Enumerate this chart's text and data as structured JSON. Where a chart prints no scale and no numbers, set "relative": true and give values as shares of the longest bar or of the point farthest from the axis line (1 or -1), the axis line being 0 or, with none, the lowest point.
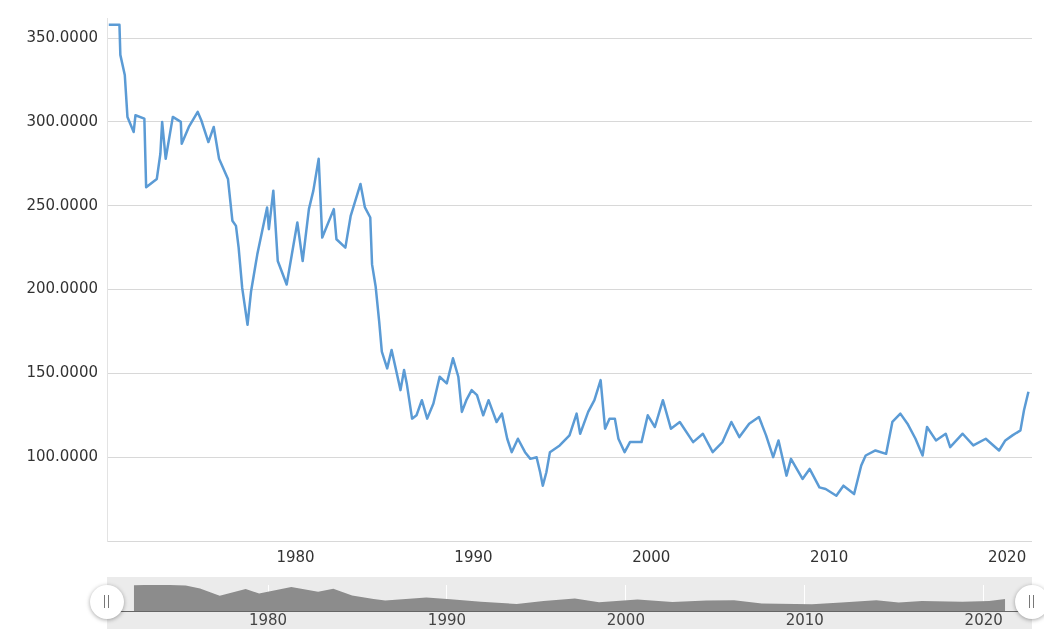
{
  "chart_data": [
    {
      "type": "line",
      "color": "#5b9bd5",
      "marker": "none",
      "grid": "y",
      "x": [
        1969.5,
        1970.1,
        1970.15,
        1970.4,
        1970.55,
        1970.9,
        1971.0,
        1971.5,
        1971.6,
        1972.2,
        1972.4,
        1972.5,
        1972.7,
        1973.1,
        1973.55,
        1973.6,
        1974.0,
        1974.5,
        1974.7,
        1975.1,
        1975.4,
        1975.7,
        1976.2,
        1976.45,
        1976.65,
        1976.8,
        1977.0,
        1977.3,
        1977.5,
        1977.85,
        1978.4,
        1978.5,
        1978.75,
        1979.0,
        1979.5,
        1980.1,
        1980.4,
        1980.75,
        1981.0,
        1981.3,
        1981.5,
        1982.15,
        1982.3,
        1982.8,
        1983.1,
        1983.65,
        1983.9,
        1984.2,
        1984.3,
        1984.5,
        1984.7,
        1984.85,
        1985.15,
        1985.4,
        1985.9,
        1986.1,
        1986.25,
        1986.55,
        1986.8,
        1987.1,
        1987.4,
        1987.75,
        1988.1,
        1988.5,
        1988.85,
        1989.15,
        1989.35,
        1989.6,
        1989.9,
        1990.2,
        1990.55,
        1990.85,
        1991.3,
        1991.6,
        1991.9,
        1992.15,
        1992.5,
        1992.9,
        1993.2,
        1993.55,
        1993.75,
        1993.9,
        1994.1,
        1994.3,
        1994.85,
        1995.4,
        1995.8,
        1996.0,
        1996.45,
        1996.8,
        1997.15,
        1997.4,
        1997.65,
        1997.95,
        1998.15,
        1998.5,
        1998.8,
        1999.45,
        1999.8,
        2000.2,
        2000.65,
        2001.1,
        2001.6,
        2002.35,
        2002.9,
        2003.45,
        2004.0,
        2004.5,
        2004.95,
        2005.5,
        2006.05,
        2006.45,
        2006.85,
        2007.15,
        2007.6,
        2007.85,
        2008.5,
        2008.9,
        2009.45,
        2009.8,
        2010.4,
        2010.8,
        2011.4,
        2011.8,
        2012.05,
        2012.6,
        2013.2,
        2013.55,
        2014.0,
        2014.4,
        2014.85,
        2015.25,
        2015.5,
        2016.0,
        2016.55,
        2016.8,
        2017.5,
        2018.1,
        2018.8,
        2019.55,
        2019.9,
        2020.3,
        2020.75,
        2020.95,
        2021.2
      ],
      "values": [
        358,
        358,
        340,
        328,
        303,
        294,
        304,
        302,
        261,
        266,
        281,
        300,
        278,
        303,
        300,
        287,
        297,
        306,
        301,
        288,
        297,
        278,
        266,
        241,
        238,
        225,
        201,
        179,
        199,
        221,
        249,
        236,
        259,
        217,
        203,
        240,
        217,
        248,
        259,
        278,
        231,
        248,
        230,
        225,
        244,
        263,
        249,
        243,
        215,
        202,
        181,
        163,
        153,
        164,
        140,
        152,
        144,
        123,
        125,
        134,
        123,
        132,
        148,
        144,
        159,
        148,
        127,
        134,
        140,
        137,
        125,
        134,
        121,
        126,
        111,
        103,
        111,
        103,
        99,
        100,
        91,
        83,
        91,
        103,
        107,
        113,
        126,
        114,
        127,
        134,
        146,
        117,
        123,
        123,
        111,
        103,
        109,
        109,
        125,
        118,
        134,
        117,
        121,
        109,
        114,
        103,
        109,
        121,
        112,
        120,
        124,
        113,
        100,
        110,
        89,
        99,
        87,
        93,
        82,
        81,
        77,
        83,
        78,
        95,
        101,
        104,
        102,
        121,
        126,
        120,
        111,
        101,
        118,
        110,
        114,
        106,
        114,
        107,
        111,
        104,
        110,
        113,
        116,
        128,
        139
      ],
      "xlim": [
        1969.4,
        2021.4
      ],
      "xticks": [
        1980,
        1990,
        2000,
        2010,
        2020
      ],
      "ylim": [
        50,
        362
      ],
      "yticks": [
        {
          "value": 50,
          "label": null
        },
        {
          "value": 100,
          "label": "100.0000"
        },
        {
          "value": 150,
          "label": "150.0000"
        },
        {
          "value": 200,
          "label": "200.0000"
        },
        {
          "value": 250,
          "label": "250.0000"
        },
        {
          "value": 300,
          "label": "300.0000"
        },
        {
          "value": 350,
          "label": "350.0000"
        }
      ]
    },
    {
      "type": "area",
      "color": "#8c8c8c",
      "marker": "none",
      "grid": "x",
      "relative": true,
      "tick_labels": "x",
      "x": [
        1972.5,
        1973.1,
        1974.5,
        1975.4,
        1976.2,
        1977.3,
        1978.75,
        1979.5,
        1981.3,
        1982.8,
        1983.65,
        1984.7,
        1985.9,
        1986.55,
        1988.85,
        1990.2,
        1991.9,
        1993.9,
        1995.4,
        1997.15,
        1998.5,
        2000.65,
        2002.6,
        2004.5,
        2006.05,
        2007.6,
        2010.4,
        2012.05,
        2014.0,
        2015.25,
        2016.55,
        2018.8,
        2020.3,
        2021.2
      ],
      "values": [
        0.99,
        1,
        1,
        0.98,
        0.87,
        0.59,
        0.85,
        0.67,
        0.92,
        0.74,
        0.86,
        0.6,
        0.46,
        0.4,
        0.52,
        0.45,
        0.36,
        0.27,
        0.38,
        0.48,
        0.34,
        0.44,
        0.35,
        0.4,
        0.41,
        0.29,
        0.26,
        0.33,
        0.41,
        0.33,
        0.38,
        0.36,
        0.38,
        0.46
      ],
      "xlim": [
        1971.0,
        2022.7
      ],
      "xticks": [
        1980,
        1990,
        2000,
        2010,
        2020
      ]
    }
  ]
}
